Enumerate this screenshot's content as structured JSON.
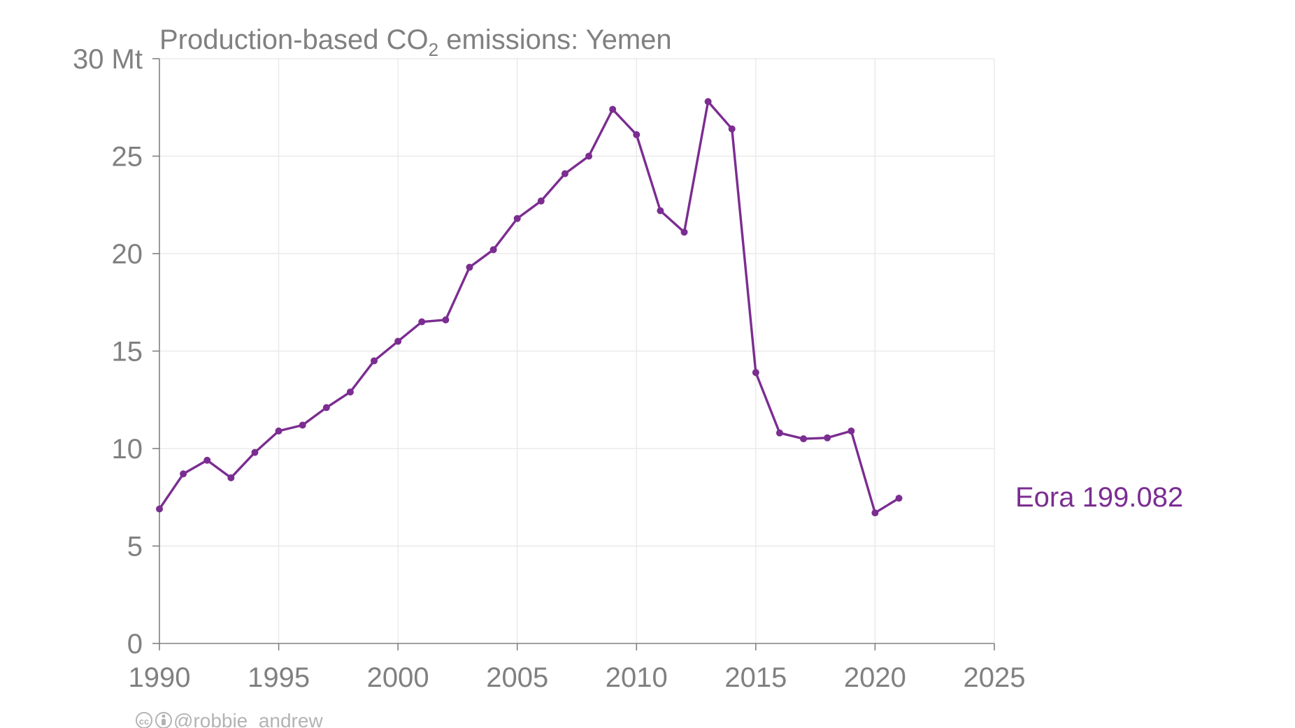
{
  "colors": {
    "series": "#7b2d91",
    "text": "#808080",
    "grid": "#e6e6e6",
    "credit": "#b3b3b3"
  },
  "chart_data": {
    "type": "line",
    "title_main": "Production-based CO",
    "title_sub": "2",
    "title_rest": " emissions: Yemen",
    "xlim": [
      1990,
      2025
    ],
    "ylim": [
      0,
      30
    ],
    "x_ticks": [
      1990,
      1995,
      2000,
      2005,
      2010,
      2015,
      2020,
      2025
    ],
    "y_tick_labels": [
      {
        "value": 0,
        "label": "0"
      },
      {
        "value": 5,
        "label": "5"
      },
      {
        "value": 10,
        "label": "10"
      },
      {
        "value": 15,
        "label": "15"
      },
      {
        "value": 20,
        "label": "20"
      },
      {
        "value": 25,
        "label": "25"
      },
      {
        "value": 30,
        "label": "30 Mt"
      }
    ],
    "grid": true,
    "series": [
      {
        "name": "Eora 199.082",
        "color": "#7b2d91",
        "x": [
          1990,
          1991,
          1992,
          1993,
          1994,
          1995,
          1996,
          1997,
          1998,
          1999,
          2000,
          2001,
          2002,
          2003,
          2004,
          2005,
          2006,
          2007,
          2008,
          2009,
          2010,
          2011,
          2012,
          2013,
          2014,
          2015,
          2016,
          2017,
          2018,
          2019,
          2020,
          2021
        ],
        "y": [
          6.9,
          8.7,
          9.4,
          8.5,
          9.8,
          10.9,
          11.2,
          12.1,
          12.9,
          14.5,
          15.5,
          16.5,
          16.6,
          19.3,
          20.2,
          21.8,
          22.7,
          24.1,
          25.0,
          27.4,
          26.1,
          22.2,
          21.1,
          27.8,
          26.4,
          13.9,
          10.8,
          10.5,
          10.55,
          10.9,
          6.7,
          7.45
        ]
      }
    ]
  },
  "credit": {
    "handle": "@robbie_andrew",
    "cc_icon": "creative-commons-icon",
    "by_icon": "attribution-icon"
  }
}
